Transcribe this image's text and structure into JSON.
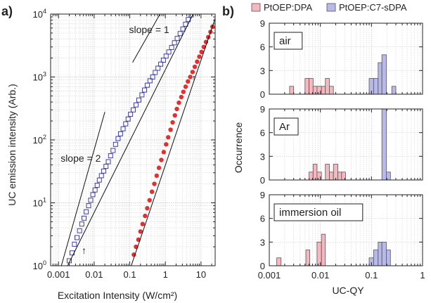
{
  "chart_data": [
    {
      "panel": "a)",
      "type": "scatter",
      "xscale": "log",
      "yscale": "log",
      "xlabel": "Excitation Intensity (W/cm²)",
      "ylabel": "UC emission intensity (Arb.)",
      "xlim": [
        0.0006,
        25
      ],
      "ylim": [
        1,
        10000
      ],
      "xticks": [
        "0.001",
        "0.01",
        "0.1",
        "1",
        "10"
      ],
      "grid": true,
      "series": [
        {
          "marker": "open-square",
          "color": "#3f3fa8",
          "x": [
            0.002,
            0.0024,
            0.0028,
            0.0033,
            0.0039,
            0.0045,
            0.0052,
            0.006,
            0.007,
            0.008,
            0.0092,
            0.0106,
            0.0122,
            0.014,
            0.016,
            0.0185,
            0.0215,
            0.025,
            0.029,
            0.034,
            0.04,
            0.047,
            0.055,
            0.065,
            0.077,
            0.09,
            0.105,
            0.125,
            0.15,
            0.18,
            0.22,
            0.26,
            0.31,
            0.37,
            0.44,
            0.52,
            0.62,
            0.74,
            0.88,
            1.05,
            1.25,
            1.5,
            1.8,
            2.15,
            2.6,
            3.1,
            3.7,
            4.4,
            5.3
          ],
          "y": [
            1.2,
            1.6,
            2.2,
            2.8,
            3.6,
            4.6,
            5.7,
            7.2,
            9.0,
            11,
            13.5,
            16,
            19,
            23,
            27,
            32,
            38,
            45,
            56,
            68,
            85,
            105,
            125,
            150,
            180,
            215,
            255,
            300,
            360,
            430,
            520,
            620,
            740,
            870,
            1000,
            1180,
            1380,
            1600,
            1850,
            2150,
            2500,
            2950,
            3500,
            4100,
            4900,
            5800,
            6900,
            8200,
            9700
          ]
        },
        {
          "marker": "filled-circle",
          "color": "#e03030",
          "x": [
            0.13,
            0.15,
            0.175,
            0.2,
            0.23,
            0.27,
            0.31,
            0.36,
            0.42,
            0.49,
            0.57,
            0.66,
            0.77,
            0.9,
            1.05,
            1.2,
            1.4,
            1.6,
            1.85,
            2.1,
            2.4,
            2.8,
            3.2,
            3.7,
            4.3,
            5.0,
            5.8,
            6.7,
            7.8,
            9.0,
            10.4,
            12,
            13.8,
            16,
            18.5,
            21
          ],
          "y": [
            1.5,
            2.0,
            2.6,
            3.5,
            4.6,
            6.2,
            8.2,
            11,
            15,
            20,
            27,
            36,
            48,
            64,
            85,
            110,
            145,
            190,
            245,
            310,
            390,
            480,
            580,
            700,
            850,
            1000,
            1200,
            1450,
            1750,
            2100,
            2500,
            3000,
            3600,
            4300,
            5200,
            6300
          ]
        }
      ],
      "fit_lines": [
        {
          "x": [
            0.0018,
            6.0
          ],
          "y": [
            1.0,
            10000
          ]
        },
        {
          "x": [
            0.11,
            25
          ],
          "y": [
            1.0,
            8500
          ]
        }
      ],
      "guide_lines": [
        {
          "label": "slope = 2",
          "x": [
            0.0012,
            0.02
          ],
          "y": [
            1.0,
            278
          ]
        },
        {
          "label": "slope = 1",
          "x": [
            0.12,
            0.7
          ],
          "y": [
            1700,
            9900
          ]
        }
      ],
      "annotations": [
        {
          "text": "slope = 1",
          "x": 0.35,
          "y": 5000
        },
        {
          "text": "slope = 2",
          "x": 0.0042,
          "y": 45
        },
        {
          "text": "↑",
          "x": 0.0052,
          "y": 1.8
        },
        {
          "text": "↑",
          "x": 6.4,
          "y": 1000
        }
      ]
    },
    {
      "panel": "b)",
      "type": "bar",
      "xscale": "log",
      "xlabel": "UC-QY",
      "ylabel": "Occurrence",
      "xlim": [
        0.001,
        1
      ],
      "ylim": [
        0,
        9
      ],
      "xticks": [
        "0.001",
        "0.01",
        "0.1",
        "1"
      ],
      "yticks": [
        "0",
        "3",
        "6",
        "9"
      ],
      "legend_position": "top",
      "legend": [
        "PtOEP:DPA",
        "PtOEP:C7-sDPA"
      ],
      "colors": {
        "dpa": "#f5b8c0",
        "sdpa": "#b9b9e8",
        "edge": "#555555"
      },
      "subplots": [
        {
          "label": "air",
          "series": [
            {
              "name": "PtOEP:DPA",
              "bars": [
                [
                  0.0025,
                  0.003,
                  1
                ],
                [
                  0.005,
                  0.006,
                  2
                ],
                [
                  0.006,
                  0.0072,
                  2
                ],
                [
                  0.0072,
                  0.0086,
                  1
                ],
                [
                  0.0086,
                  0.0105,
                  1
                ],
                [
                  0.0105,
                  0.0125,
                  1
                ],
                [
                  0.0125,
                  0.015,
                  2
                ],
                [
                  0.015,
                  0.018,
                  1
                ]
              ]
            },
            {
              "name": "PtOEP:C7-sDPA",
              "bars": [
                [
                  0.09,
                  0.11,
                  2
                ],
                [
                  0.11,
                  0.135,
                  2
                ],
                [
                  0.135,
                  0.16,
                  4
                ],
                [
                  0.16,
                  0.195,
                  5
                ],
                [
                  0.25,
                  0.3,
                  1
                ]
              ]
            }
          ]
        },
        {
          "label": "Ar",
          "series": [
            {
              "name": "PtOEP:DPA",
              "bars": [
                [
                  0.006,
                  0.0072,
                  1
                ],
                [
                  0.0072,
                  0.0086,
                  2
                ],
                [
                  0.0086,
                  0.0105,
                  1
                ],
                [
                  0.0125,
                  0.015,
                  2
                ],
                [
                  0.015,
                  0.018,
                  1
                ],
                [
                  0.018,
                  0.022,
                  2
                ],
                [
                  0.022,
                  0.026,
                  1
                ],
                [
                  0.026,
                  0.031,
                  1
                ]
              ]
            },
            {
              "name": "PtOEP:C7-sDPA",
              "bars": [
                [
                  0.16,
                  0.195,
                  9
                ],
                [
                  0.195,
                  0.235,
                  1
                ]
              ]
            }
          ]
        },
        {
          "label": "immersion oil",
          "series": [
            {
              "name": "PtOEP:DPA",
              "bars": [
                [
                  0.0014,
                  0.0017,
                  1
                ],
                [
                  0.0052,
                  0.0062,
                  2
                ],
                [
                  0.0086,
                  0.0105,
                  3
                ],
                [
                  0.0105,
                  0.0125,
                  4
                ]
              ]
            },
            {
              "name": "PtOEP:C7-sDPA",
              "bars": [
                [
                  0.09,
                  0.11,
                  1
                ],
                [
                  0.11,
                  0.135,
                  2
                ],
                [
                  0.135,
                  0.16,
                  3
                ],
                [
                  0.16,
                  0.195,
                  3
                ],
                [
                  0.195,
                  0.235,
                  2
                ]
              ]
            }
          ]
        }
      ]
    }
  ]
}
